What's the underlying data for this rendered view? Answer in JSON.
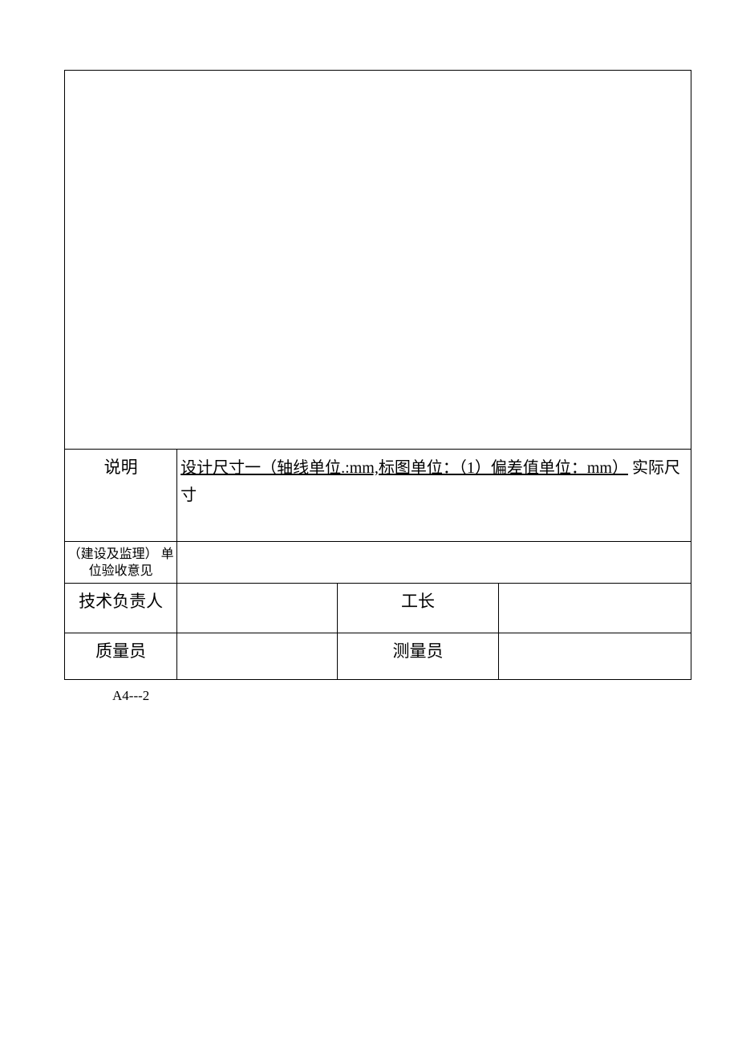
{
  "table": {
    "description_row": {
      "label": "说明",
      "content_underlined": "设计尺寸一（轴线单位.:mm,标图单位：（1）偏差值单位：mm）",
      "content_tail": "实际尺寸"
    },
    "inspection_row": {
      "label": "（建设及监理） 单位验收意见"
    },
    "tech_row": {
      "label_left": "技术负责人",
      "label_mid": "工长"
    },
    "qa_row": {
      "label_left": "质量员",
      "label_mid": "测量员"
    }
  },
  "footer": "A4---2",
  "colors": {
    "border": "#000000",
    "background": "#ffffff",
    "text": "#000000"
  },
  "typography": {
    "body_font": "SimSun",
    "label_fontsize": 21,
    "small_label_fontsize": 16,
    "footer_fontsize": 17
  }
}
